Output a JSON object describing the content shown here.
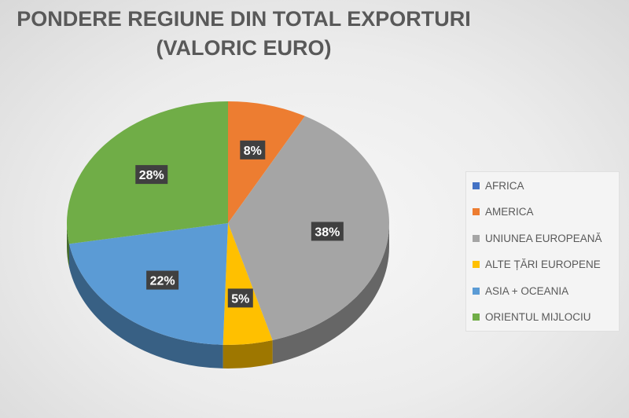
{
  "chart_data": {
    "type": "pie",
    "title_lines": [
      "PONDERE REGIUNE DIN TOTAL EXPORTURI",
      "(VALORIC EURO)"
    ],
    "categories": [
      "AFRICA",
      "AMERICA",
      "UNIUNEA EUROPEANĂ",
      "ALTE ȚĂRI EUROPENE",
      "ASIA + OCEANIA",
      "ORIENTUL MIJLOCIU"
    ],
    "values": [
      0,
      8,
      38,
      5,
      22,
      28
    ],
    "data_labels": [
      "",
      "8%",
      "38%",
      "5%",
      "22%",
      "28%"
    ],
    "colors": [
      "#4472C4",
      "#ED7D31",
      "#A5A5A5",
      "#FFC000",
      "#5B9BD5",
      "#70AD47"
    ],
    "style": "3d",
    "legend_position": "right"
  }
}
